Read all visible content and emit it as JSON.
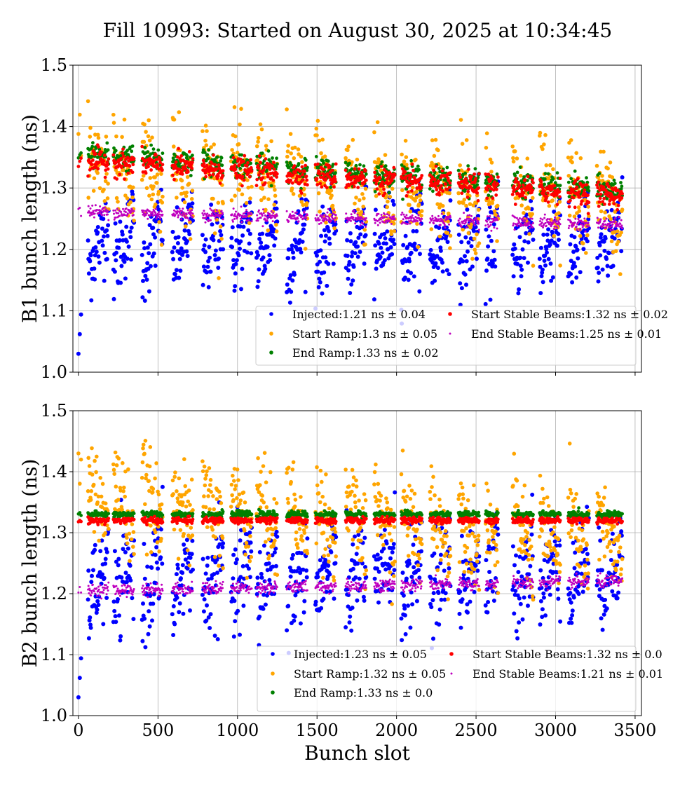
{
  "chart_data": [
    {
      "type": "scatter",
      "title": "Fill 10993: Started on August 30, 2025 at 10:34:45",
      "xlabel": "",
      "ylabel": "B1 bunch length (ns)",
      "xlim": [
        -35,
        3540
      ],
      "ylim": [
        1.0,
        1.5
      ],
      "xticks": [
        0,
        500,
        1000,
        1500,
        2000,
        2500,
        3000,
        3500
      ],
      "show_xtick_labels": false,
      "yticks": [
        "1.0",
        "1.1",
        "1.2",
        "1.3",
        "1.4",
        "1.5"
      ],
      "grid": true,
      "legend_placement": "lower-right",
      "trains": [
        [
          60,
          190
        ],
        [
          220,
          350
        ],
        [
          400,
          530
        ],
        [
          590,
          720
        ],
        [
          780,
          910
        ],
        [
          960,
          1090
        ],
        [
          1120,
          1250
        ],
        [
          1310,
          1440
        ],
        [
          1490,
          1620
        ],
        [
          1680,
          1810
        ],
        [
          1860,
          1990
        ],
        [
          2030,
          2160
        ],
        [
          2210,
          2340
        ],
        [
          2390,
          2520
        ],
        [
          2560,
          2640
        ],
        [
          2730,
          2860
        ],
        [
          2900,
          3030
        ],
        [
          3080,
          3210
        ],
        [
          3260,
          3420
        ]
      ],
      "pilot_slots": [
        0,
        8,
        16
      ],
      "series": [
        {
          "name": "Injected",
          "legend": "Injected:1.21 ns ± 0.04",
          "color": "#0000ff",
          "mean": 1.21,
          "std": 0.04,
          "trend": [
            1.21,
            1.21
          ]
        },
        {
          "name": "Start Ramp",
          "legend": "Start Ramp:1.3 ns ± 0.05",
          "color": "#ffa500",
          "mean": 1.3,
          "std": 0.05,
          "trend": [
            1.33,
            1.27
          ]
        },
        {
          "name": "End Ramp",
          "legend": "End Ramp:1.33 ns ± 0.02",
          "color": "#008000",
          "mean": 1.33,
          "std": 0.02,
          "trend": [
            1.355,
            1.295
          ]
        },
        {
          "name": "Start Stable Beams",
          "legend": "Start Stable Beams:1.32 ns ± 0.02",
          "color": "#ff0000",
          "mean": 1.32,
          "std": 0.02,
          "trend": [
            1.345,
            1.288
          ]
        },
        {
          "name": "End Stable Beams",
          "legend": "End Stable Beams:1.25 ns ± 0.01",
          "color": "#bf00bf",
          "mean": 1.25,
          "std": 0.01,
          "trend": [
            1.262,
            1.24
          ]
        }
      ]
    },
    {
      "type": "scatter",
      "xlabel": "Bunch slot",
      "ylabel": "B2 bunch length (ns)",
      "xlim": [
        -35,
        3540
      ],
      "ylim": [
        1.0,
        1.5
      ],
      "xticks": [
        0,
        500,
        1000,
        1500,
        2000,
        2500,
        3000,
        3500
      ],
      "show_xtick_labels": true,
      "yticks": [
        "1.0",
        "1.1",
        "1.2",
        "1.3",
        "1.4",
        "1.5"
      ],
      "grid": true,
      "legend_placement": "lower-right",
      "trains": [
        [
          60,
          190
        ],
        [
          220,
          350
        ],
        [
          400,
          530
        ],
        [
          590,
          720
        ],
        [
          780,
          910
        ],
        [
          960,
          1090
        ],
        [
          1120,
          1250
        ],
        [
          1310,
          1440
        ],
        [
          1490,
          1620
        ],
        [
          1680,
          1810
        ],
        [
          1860,
          1990
        ],
        [
          2030,
          2160
        ],
        [
          2210,
          2340
        ],
        [
          2390,
          2520
        ],
        [
          2560,
          2640
        ],
        [
          2730,
          2860
        ],
        [
          2900,
          3030
        ],
        [
          3080,
          3210
        ],
        [
          3260,
          3420
        ]
      ],
      "pilot_slots": [
        0,
        8,
        16
      ],
      "series": [
        {
          "name": "Injected",
          "legend": "Injected:1.23 ns ± 0.05",
          "color": "#0000ff",
          "mean": 1.23,
          "std": 0.05,
          "trend": [
            1.22,
            1.24
          ]
        },
        {
          "name": "Start Ramp",
          "legend": "Start Ramp:1.32 ns ± 0.05",
          "color": "#ffa500",
          "mean": 1.32,
          "std": 0.05,
          "trend": [
            1.35,
            1.28
          ]
        },
        {
          "name": "End Ramp",
          "legend": "End Ramp:1.33 ns ± 0.0",
          "color": "#008000",
          "mean": 1.33,
          "std": 0.005,
          "trend": [
            1.33,
            1.33
          ]
        },
        {
          "name": "Start Stable Beams",
          "legend": "Start Stable Beams:1.32 ns ± 0.0",
          "color": "#ff0000",
          "mean": 1.32,
          "std": 0.005,
          "trend": [
            1.32,
            1.32
          ]
        },
        {
          "name": "End Stable Beams",
          "legend": "End Stable Beams:1.21 ns ± 0.01",
          "color": "#bf00bf",
          "mean": 1.21,
          "std": 0.01,
          "trend": [
            1.205,
            1.22
          ]
        }
      ]
    }
  ]
}
